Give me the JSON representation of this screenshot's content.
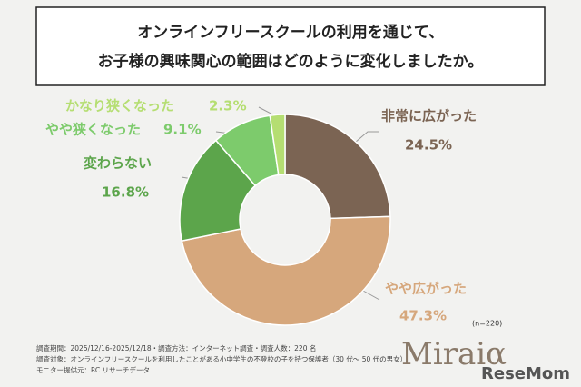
{
  "chart_data": {
    "type": "pie",
    "title_lines": [
      "オンラインフリースクールの利用を通じて、",
      "お子様の興味関心の範囲はどのように変化しましたか。"
    ],
    "categories": [
      "非常に広がった",
      "やや広がった",
      "変わらない",
      "やや狭くなった",
      "かなり狭くなった"
    ],
    "values": [
      24.5,
      47.3,
      16.8,
      9.1,
      2.3
    ],
    "value_labels": [
      "24.5%",
      "47.3%",
      "16.8%",
      "9.1%",
      "2.3%"
    ],
    "colors": [
      "#7b6453",
      "#d6a77c",
      "#5ca54b",
      "#7dcb6c",
      "#b5de72"
    ],
    "donut": true,
    "sample_note": "(n=220)",
    "footnotes": [
      "調査期間：2025/12/16-2025/12/18・調査方法：インターネット調査・調査人数：220 名",
      "調査対象：オンラインフリースクールを利用したことがある小中学生の不登校の子を持つ保護者（30 代〜 50 代の男女）",
      "モニター提供元：RC リサーチデータ"
    ],
    "logo": "Miraiα",
    "watermark": "ReseMom"
  }
}
